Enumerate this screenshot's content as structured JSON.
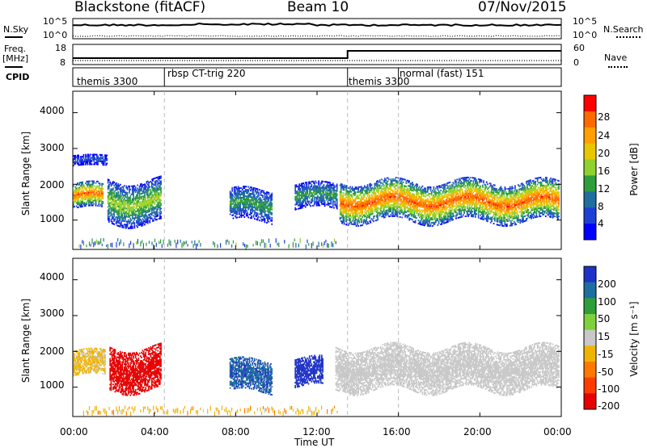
{
  "header": {
    "station": "Blackstone (fitACF)",
    "beam": "Beam 10",
    "date": "07/Nov/2015"
  },
  "noise_panel": {
    "left_label": "N.Sky",
    "right_label": "N.Search",
    "left_ticks": [
      "10^5",
      "10^0"
    ],
    "right_ticks": [
      "10^5",
      "10^0"
    ]
  },
  "freq_panel": {
    "left_label_line1": "Freq.",
    "left_label_line2": "[MHz]",
    "right_label": "Nave",
    "left_ticks": [
      "18",
      "8"
    ],
    "right_ticks": [
      "60",
      "0"
    ]
  },
  "cpid_panel": {
    "label": "CPID",
    "segments": [
      {
        "name": "themis 3300",
        "start_hour": 0.0
      },
      {
        "name": "rbsp CT-trig 220",
        "start_hour": 4.5
      },
      {
        "name": "themis 3300",
        "start_hour": 13.5
      },
      {
        "name": "normal (fast) 151",
        "start_hour": 16.0
      }
    ]
  },
  "power_panel": {
    "ylabel": "Slant Range [km]",
    "colorbar_label": "Power [dB]",
    "colorbar_ticks": [
      "28",
      "24",
      "20",
      "16",
      "12",
      "8",
      "4"
    ],
    "colorbar_colors": [
      "#ff0000",
      "#ff6a00",
      "#ff9f00",
      "#e8c600",
      "#8fd12e",
      "#2e9e3b",
      "#1e6fa0",
      "#1e3fd6",
      "#0000ff"
    ]
  },
  "velocity_panel": {
    "ylabel": "Slant Range [km]",
    "colorbar_label": "Velocity [m s⁻¹]",
    "colorbar_ticks": [
      "200",
      "100",
      "50",
      "15",
      "-15",
      "-50",
      "-100",
      "-200"
    ],
    "colorbar_colors": [
      "#1e32c8",
      "#1e6ea0",
      "#2e9e3b",
      "#7dd13c",
      "#c8c8c8",
      "#f0b400",
      "#ff7800",
      "#ff3c00",
      "#e60000"
    ]
  },
  "xaxis": {
    "label": "Time UT",
    "ticks": [
      "00:00",
      "04:00",
      "08:00",
      "12:00",
      "16:00",
      "20:00",
      "00:00"
    ]
  },
  "yaxis_ticks": [
    "4000",
    "3000",
    "2000",
    "1000"
  ],
  "chart_data": {
    "type": "heatmap",
    "title": "Blackstone (fitACF)   Beam 10   07/Nov/2015",
    "xlabel": "Time UT",
    "ylabel": "Slant Range [km]",
    "xlim_hours": [
      0,
      24
    ],
    "ylim_km": [
      180,
      4600
    ],
    "power_colorbar_range_db": [
      0,
      30
    ],
    "velocity_colorbar_range_ms": [
      -200,
      200
    ],
    "mode_change_hours": [
      4.5,
      13.5,
      16.0
    ],
    "scatter_regions": [
      {
        "panel": "power",
        "t_start": 0.0,
        "t_end": 1.5,
        "r_center": 1650,
        "r_width": 350,
        "peak_db": 26
      },
      {
        "panel": "power",
        "t_start": 0.0,
        "t_end": 1.7,
        "r_center": 2650,
        "r_width": 150,
        "peak_db": 6
      },
      {
        "panel": "power",
        "t_start": 1.7,
        "t_end": 4.3,
        "r_center": 1500,
        "r_width": 600,
        "peak_db": 16
      },
      {
        "panel": "power",
        "t_start": 7.7,
        "t_end": 9.8,
        "r_center": 1400,
        "r_width": 450,
        "peak_db": 12
      },
      {
        "panel": "power",
        "t_start": 10.9,
        "t_end": 13.0,
        "r_center": 1650,
        "r_width": 350,
        "peak_db": 12
      },
      {
        "panel": "power",
        "t_start": 13.1,
        "t_end": 23.9,
        "r_center": 1500,
        "r_width": 550,
        "peak_db": 26
      },
      {
        "panel": "velocity",
        "t_start": 0.0,
        "t_end": 1.6,
        "r_center": 1650,
        "r_width": 350,
        "velocity_ms": -30
      },
      {
        "panel": "velocity",
        "t_start": 1.8,
        "t_end": 4.3,
        "r_center": 1500,
        "r_width": 600,
        "velocity_ms": -200
      },
      {
        "panel": "velocity",
        "t_start": 7.7,
        "t_end": 9.8,
        "r_center": 1300,
        "r_width": 450,
        "velocity_ms": 150
      },
      {
        "panel": "velocity",
        "t_start": 10.9,
        "t_end": 12.3,
        "r_center": 1400,
        "r_width": 400,
        "velocity_ms": 200
      },
      {
        "panel": "velocity",
        "t_start": 12.9,
        "t_end": 23.9,
        "r_center": 1500,
        "r_width": 600,
        "velocity_ms": 0
      }
    ]
  }
}
